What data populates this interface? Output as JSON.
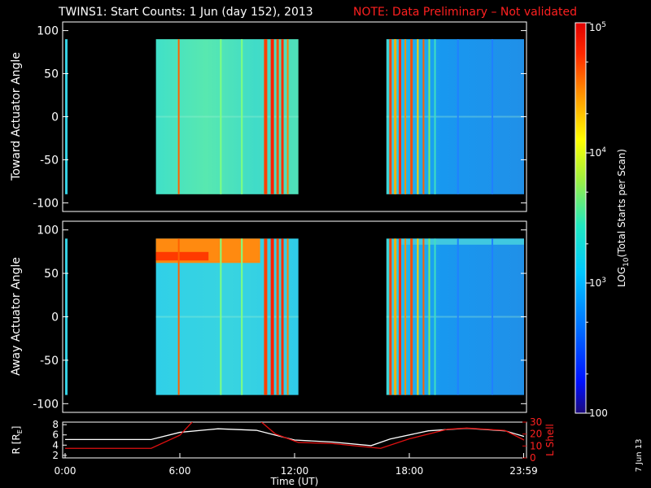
{
  "header": {
    "title": "TWINS1: Start Counts:  1 Jun (day 152), 2013",
    "note": "NOTE: Data Preliminary – Not validated"
  },
  "footer": {
    "date_stamp": "7 Jun 13"
  },
  "colors": {
    "background": "#000000",
    "note_red": "#ff2020",
    "r_line": "#ffffff",
    "lshell_line": "#e01010"
  },
  "chart_data": [
    {
      "type": "heatmap",
      "title": "",
      "xlabel": "",
      "ylabel": "Toward Actuator Angle",
      "xlim": [
        0,
        24
      ],
      "ylim": [
        -110,
        110
      ],
      "yticks": [
        "100",
        "50",
        "0",
        "-50",
        "-100"
      ],
      "data_blocks": [
        {
          "start_hour": 0.0,
          "end_hour": 0.1,
          "dominant_log10": 3.3
        },
        {
          "start_hour": 4.75,
          "end_hour": 12.2,
          "dominant_log10": 3.4
        },
        {
          "start_hour": 16.8,
          "end_hour": 24.0,
          "dominant_log10": 2.9
        }
      ],
      "angle_range": [
        -90,
        90
      ]
    },
    {
      "type": "heatmap",
      "title": "",
      "xlabel": "",
      "ylabel": "Away Actuator Angle",
      "xlim": [
        0,
        24
      ],
      "ylim": [
        -110,
        110
      ],
      "yticks": [
        "100",
        "50",
        "0",
        "-50",
        "-100"
      ],
      "data_blocks": [
        {
          "start_hour": 0.0,
          "end_hour": 0.1,
          "dominant_log10": 3.3
        },
        {
          "start_hour": 4.75,
          "end_hour": 12.2,
          "dominant_log10": 3.2
        },
        {
          "start_hour": 16.8,
          "end_hour": 24.0,
          "dominant_log10": 2.9
        }
      ],
      "angle_range": [
        -90,
        90
      ],
      "high_band": {
        "angle_from": 62,
        "angle_to": 90,
        "log10": 4.6
      }
    },
    {
      "type": "colorbar",
      "label": "LOG10(Total Starts per Scan)",
      "scale": "log",
      "range": [
        100,
        100000
      ],
      "ticks": [
        "10^5",
        "10^4",
        "10^3",
        "100"
      ]
    },
    {
      "type": "line",
      "title": "",
      "xlabel": "Time (UT)",
      "x_ticks": [
        "0:00",
        "6:00",
        "12:00",
        "18:00",
        "23:59"
      ],
      "x_tick_hours": [
        0,
        6,
        12,
        18,
        23.98
      ],
      "y_left": {
        "label": "R [RE]",
        "ticks": [
          "8",
          "6",
          "4",
          "2"
        ],
        "range": [
          1.5,
          8.5
        ]
      },
      "y_right": {
        "label": "L Shell",
        "ticks": [
          "30",
          "20",
          "10",
          "0"
        ],
        "range": [
          0,
          30
        ]
      },
      "series": [
        {
          "name": "R [RE]",
          "color": "#ffffff",
          "x": [
            0,
            4.5,
            6,
            8,
            10,
            12,
            14,
            16,
            17,
            19,
            21,
            23,
            24
          ],
          "y": [
            5.1,
            5.1,
            6.5,
            7.2,
            6.9,
            5.0,
            4.6,
            3.9,
            5.2,
            6.8,
            7.3,
            6.8,
            5.7
          ]
        },
        {
          "name": "L Shell",
          "color": "#e01010",
          "x": [
            0,
            4.5,
            6,
            6.7,
            10.2,
            11,
            12.2,
            14,
            16.5,
            18,
            20,
            21,
            23,
            24
          ],
          "y": [
            8,
            8,
            19,
            31,
            31,
            20,
            13,
            12,
            8,
            16,
            24,
            25,
            23,
            15
          ]
        }
      ]
    }
  ]
}
